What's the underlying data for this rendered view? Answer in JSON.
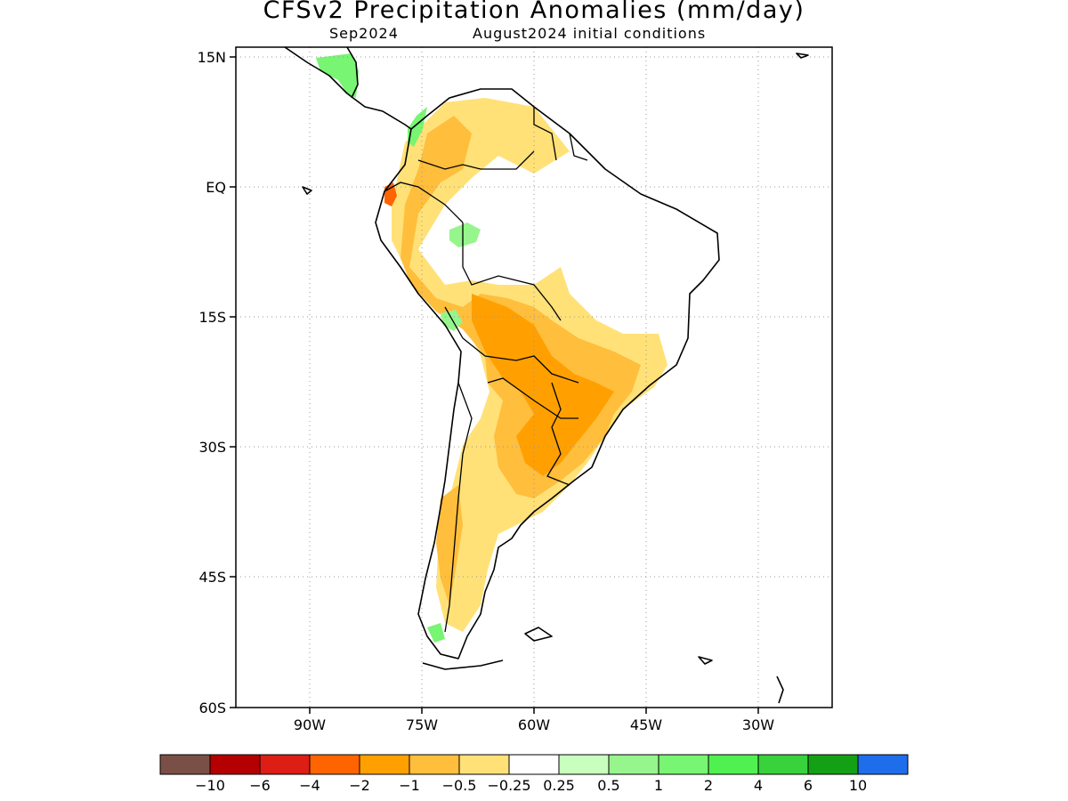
{
  "title": "CFSv2 Precipitation Anomalies (mm/day)",
  "subtitle_left": "Sep2024",
  "subtitle_right": "August2024 initial conditions",
  "lat_labels": [
    "15N",
    "EQ",
    "15S",
    "30S",
    "45S",
    "60S"
  ],
  "lon_labels": [
    "90W",
    "75W",
    "60W",
    "45W",
    "30W"
  ],
  "colorbar": {
    "colors": [
      "#7a5046",
      "#b40000",
      "#dc1e14",
      "#ff6400",
      "#ffa000",
      "#ffbe3c",
      "#ffe178",
      "#ffffff",
      "#c8ffbe",
      "#96f58c",
      "#78f573",
      "#50f050",
      "#37d23c",
      "#14a014",
      "#1e6eeb"
    ],
    "tick_labels": [
      "−10",
      "−6",
      "−4",
      "−2",
      "−1",
      "−0.5",
      "−0.25",
      "0.25",
      "0.5",
      "1",
      "2",
      "4",
      "6",
      "10"
    ]
  },
  "grid": true
}
